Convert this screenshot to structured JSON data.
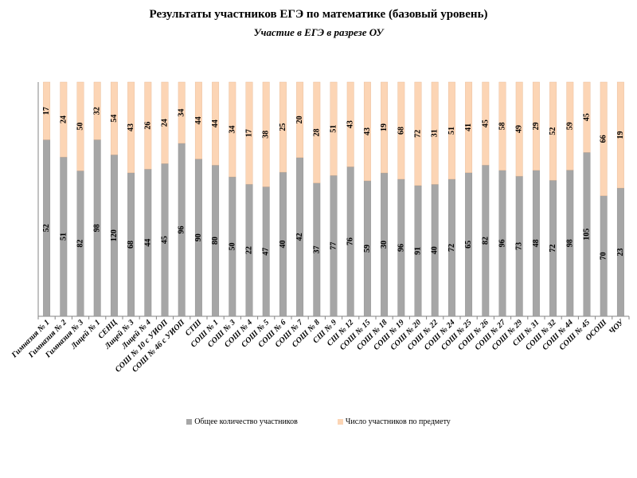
{
  "chart_data": {
    "type": "bar",
    "stacked": "percent",
    "title": "Результаты участников ЕГЭ по математике (базовый уровень)",
    "subtitle": "Участие в ЕГЭ в разрезе ОУ",
    "categories": [
      "Гимназия № 1",
      "Гимназия № 2",
      "Гимназия № 3",
      "Лицей № 1",
      "СЕНЦ",
      "Лицей № 3",
      "Лицей № 4",
      "СОШ № 10 с УИОП",
      "СОШ № 46 с УИОП",
      "СТШ",
      "СОШ № 1",
      "СОШ № 3",
      "СОШ № 4",
      "СОШ № 5",
      "СОШ № 6",
      "СОШ № 7",
      "СОШ № 8",
      "СШ № 9",
      "СШ № 12",
      "СОШ № 15",
      "СОШ № 18",
      "СОШ № 19",
      "СОШ № 20",
      "СОШ № 22",
      "СОШ № 24",
      "СОШ № 25",
      "СОШ № 26",
      "СОШ № 27",
      "СОШ № 29",
      "СШ № 31",
      "СОШ № 32",
      "СОШ № 44",
      "СОШ № 45",
      "ОСОШ",
      "ЧОУ"
    ],
    "series": [
      {
        "name": "Общее количество участников",
        "color": "#a6a6a6",
        "values": [
          52,
          51,
          82,
          98,
          120,
          68,
          44,
          45,
          96,
          90,
          80,
          50,
          22,
          47,
          40,
          42,
          37,
          77,
          76,
          59,
          30,
          96,
          91,
          40,
          72,
          65,
          82,
          96,
          73,
          48,
          72,
          98,
          105,
          70,
          23
        ]
      },
      {
        "name": "Число участников по предмету",
        "color": "#fcd5b5",
        "values": [
          17,
          24,
          50,
          32,
          54,
          43,
          26,
          24,
          34,
          44,
          44,
          34,
          17,
          38,
          25,
          20,
          28,
          51,
          43,
          43,
          19,
          68,
          72,
          31,
          51,
          41,
          45,
          58,
          49,
          29,
          52,
          59,
          45,
          66,
          19
        ]
      }
    ],
    "legend": "bottom",
    "grid": false
  }
}
